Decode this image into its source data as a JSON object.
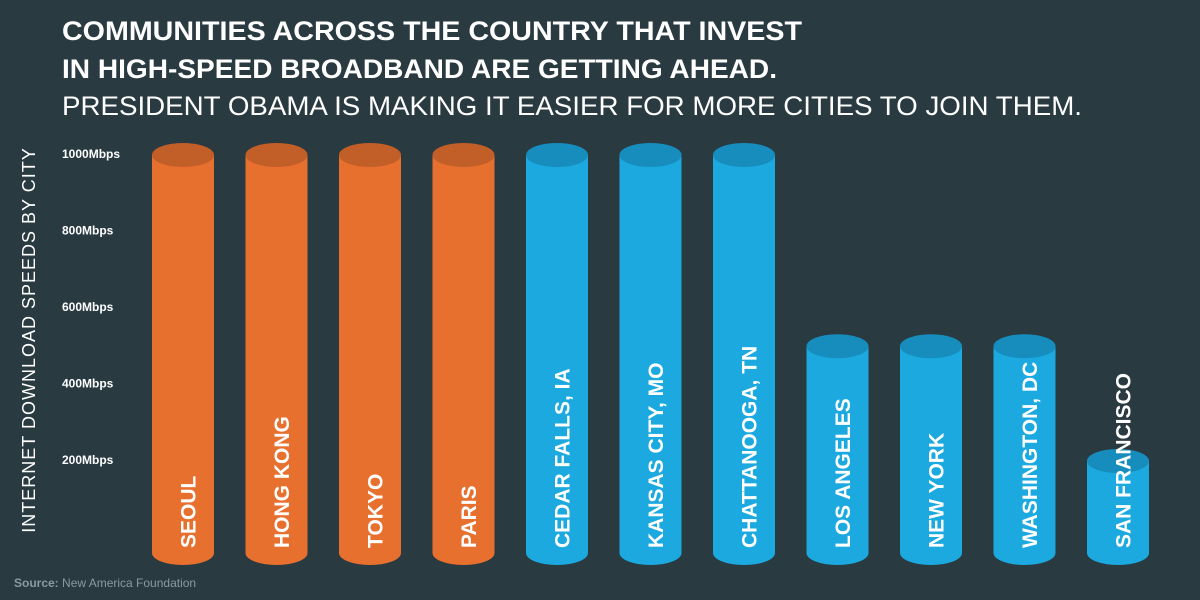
{
  "chart_data": {
    "type": "bar",
    "title": [
      "COMMUNITIES ACROSS THE COUNTRY THAT INVEST",
      "IN HIGH-SPEED BROADBAND ARE GETTING AHEAD."
    ],
    "subtitle": "PRESIDENT OBAMA IS MAKING IT EASIER FOR MORE CITIES TO JOIN THEM.",
    "ylabel": "INTERNET DOWNLOAD SPEEDS BY CITY",
    "categories": [
      "SEOUL",
      "HONG KONG",
      "TOKYO",
      "PARIS",
      "CEDAR FALLS, IA",
      "KANSAS CITY, MO",
      "CHATTANOOGA, TN",
      "LOS ANGELES",
      "NEW YORK",
      "WASHINGTON, DC",
      "SAN FRANCISCO"
    ],
    "values": [
      1000,
      1000,
      1000,
      1000,
      1000,
      1000,
      1000,
      500,
      500,
      500,
      200
    ],
    "colors": [
      "#e8702f",
      "#e8702f",
      "#e8702f",
      "#e8702f",
      "#1ba9e0",
      "#1ba9e0",
      "#1ba9e0",
      "#1ba9e0",
      "#1ba9e0",
      "#1ba9e0",
      "#1ba9e0"
    ],
    "ylim": [
      0,
      1000
    ],
    "yticks": [
      {
        "value": 200,
        "label": "200Mbps"
      },
      {
        "value": 400,
        "label": "400Mbps"
      },
      {
        "value": 600,
        "label": "600Mbps"
      },
      {
        "value": 800,
        "label": "800Mbps"
      },
      {
        "value": 1000,
        "label": "1000Mbps"
      }
    ],
    "grid": false,
    "source": {
      "label": "Source:",
      "text": "New America Foundation"
    }
  }
}
